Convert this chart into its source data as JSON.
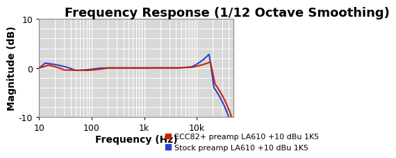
{
  "title": "Frequency Response (1/12 Octave Smoothing)",
  "xlabel": "Frequency (Hz)",
  "ylabel": "Magnitude (dB)",
  "xlim": [
    10,
    50000
  ],
  "ylim": [
    -10,
    10
  ],
  "yticks": [
    -10,
    0,
    10
  ],
  "xticks": [
    10,
    100,
    1000,
    10000
  ],
  "xticklabels": [
    "10",
    "100",
    "1k",
    "10k"
  ],
  "background_color": "#d8d8d8",
  "grid_color": "#ffffff",
  "legend": [
    {
      "label": "ECC82+ preamp LA610 +10 dBu 1K5",
      "color": "#cc2200"
    },
    {
      "label": "Stock preamp LA610 +10 dBu 1K5",
      "color": "#2244cc"
    }
  ],
  "title_fontsize": 13,
  "axis_label_fontsize": 10,
  "tick_fontsize": 9,
  "legend_fontsize": 8
}
